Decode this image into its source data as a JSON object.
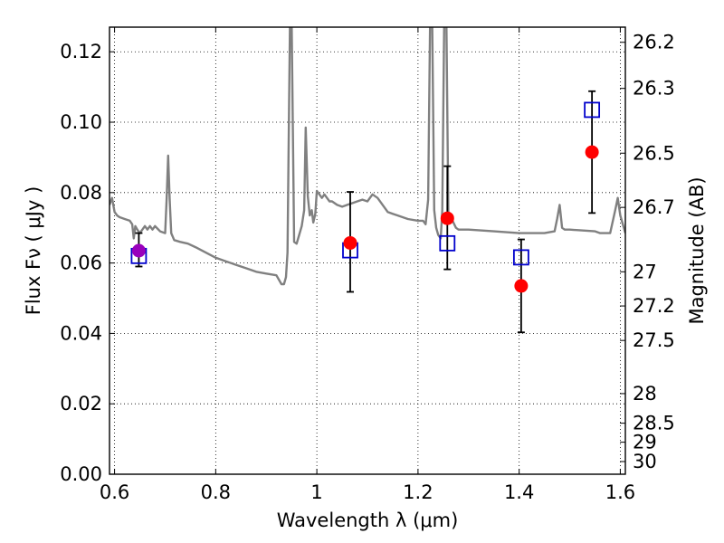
{
  "chart_data": {
    "type": "scatter",
    "xlabel": "Wavelength  λ (μm)",
    "ylabel": "Flux  Fν  ( μJy )",
    "y2label": "Magnitude (AB)",
    "xlim": [
      0.59,
      1.61
    ],
    "ylim": [
      0.0,
      0.127
    ],
    "grid": true,
    "x_ticks": [
      {
        "value": 0.6,
        "label": "0.6"
      },
      {
        "value": 0.8,
        "label": "0.8"
      },
      {
        "value": 1.0,
        "label": "1"
      },
      {
        "value": 1.2,
        "label": "1.2"
      },
      {
        "value": 1.4,
        "label": "1.4"
      },
      {
        "value": 1.6,
        "label": "1.6"
      }
    ],
    "y_ticks": [
      {
        "value": 0.0,
        "label": "0.00"
      },
      {
        "value": 0.02,
        "label": "0.02"
      },
      {
        "value": 0.04,
        "label": "0.04"
      },
      {
        "value": 0.06,
        "label": "0.06"
      },
      {
        "value": 0.08,
        "label": "0.08"
      },
      {
        "value": 0.1,
        "label": "0.10"
      },
      {
        "value": 0.12,
        "label": "0.12"
      }
    ],
    "y2_ticks": [
      {
        "flux": 0.1227,
        "label": "26.2"
      },
      {
        "flux": 0.1096,
        "label": "26.3"
      },
      {
        "flux": 0.0912,
        "label": "26.5"
      },
      {
        "flux": 0.0758,
        "label": "26.7"
      },
      {
        "flux": 0.0575,
        "label": "27"
      },
      {
        "flux": 0.0478,
        "label": "27.2"
      },
      {
        "flux": 0.038,
        "label": "27.5"
      },
      {
        "flux": 0.0229,
        "label": "28"
      },
      {
        "flux": 0.0145,
        "label": "28.5"
      },
      {
        "flux": 0.0091,
        "label": "29"
      },
      {
        "flux": 0.0036,
        "label": "30"
      }
    ],
    "series": [
      {
        "kind": "line",
        "color": "#808080",
        "x": [
          0.59,
          0.595,
          0.6,
          0.605,
          0.61,
          0.62,
          0.63,
          0.635,
          0.638,
          0.641,
          0.645,
          0.65,
          0.66,
          0.665,
          0.67,
          0.675,
          0.68,
          0.69,
          0.7,
          0.703,
          0.706,
          0.709,
          0.712,
          0.718,
          0.73,
          0.745,
          0.76,
          0.78,
          0.8,
          0.82,
          0.84,
          0.86,
          0.88,
          0.9,
          0.92,
          0.93,
          0.935,
          0.939,
          0.942,
          0.944,
          0.947,
          0.95,
          0.955,
          0.96,
          0.965,
          0.97,
          0.975,
          0.978,
          0.982,
          0.986,
          0.99,
          0.993,
          0.997,
          1.0,
          1.005,
          1.01,
          1.015,
          1.02,
          1.025,
          1.03,
          1.04,
          1.05,
          1.06,
          1.07,
          1.08,
          1.09,
          1.1,
          1.11,
          1.12,
          1.13,
          1.135,
          1.14,
          1.15,
          1.16,
          1.18,
          1.2,
          1.21,
          1.215,
          1.22,
          1.224,
          1.228,
          1.232,
          1.236,
          1.24,
          1.245,
          1.248,
          1.252,
          1.256,
          1.26,
          1.265,
          1.27,
          1.275,
          1.28,
          1.3,
          1.35,
          1.4,
          1.45,
          1.47,
          1.475,
          1.48,
          1.485,
          1.49,
          1.5,
          1.55,
          1.56,
          1.58,
          1.59,
          1.595,
          1.6,
          1.61
        ],
        "y": [
          0.0765,
          0.0785,
          0.0745,
          0.0735,
          0.073,
          0.0725,
          0.072,
          0.071,
          0.067,
          0.0705,
          0.0695,
          0.0685,
          0.0705,
          0.0695,
          0.0705,
          0.0695,
          0.0705,
          0.069,
          0.0685,
          0.078,
          0.0905,
          0.078,
          0.0685,
          0.0665,
          0.066,
          0.0655,
          0.0645,
          0.063,
          0.0615,
          0.0605,
          0.0595,
          0.0585,
          0.0575,
          0.057,
          0.0565,
          0.054,
          0.054,
          0.056,
          0.063,
          0.09,
          0.13,
          0.13,
          0.066,
          0.0655,
          0.068,
          0.0705,
          0.075,
          0.0985,
          0.079,
          0.0735,
          0.075,
          0.0715,
          0.074,
          0.0805,
          0.0795,
          0.0785,
          0.0795,
          0.0785,
          0.0775,
          0.0775,
          0.0765,
          0.076,
          0.0765,
          0.077,
          0.0775,
          0.078,
          0.0775,
          0.0795,
          0.0785,
          0.0765,
          0.0755,
          0.0745,
          0.074,
          0.0735,
          0.0725,
          0.072,
          0.072,
          0.071,
          0.078,
          0.13,
          0.13,
          0.075,
          0.07,
          0.068,
          0.067,
          0.075,
          0.13,
          0.13,
          0.0745,
          0.073,
          0.0715,
          0.07,
          0.0695,
          0.0695,
          0.069,
          0.0685,
          0.0685,
          0.069,
          0.0725,
          0.0765,
          0.07,
          0.0695,
          0.0695,
          0.069,
          0.0685,
          0.0685,
          0.075,
          0.0785,
          0.0735,
          0.0685
        ]
      },
      {
        "kind": "errorbar",
        "color": "#000000",
        "points": [
          {
            "x": 0.648,
            "y": 0.0635,
            "lo": 0.059,
            "hi": 0.0685
          },
          {
            "x": 1.066,
            "y": 0.0657,
            "lo": 0.0518,
            "hi": 0.0802
          },
          {
            "x": 1.258,
            "y": 0.0727,
            "lo": 0.0582,
            "hi": 0.0875
          },
          {
            "x": 1.404,
            "y": 0.0535,
            "lo": 0.0403,
            "hi": 0.0667
          },
          {
            "x": 1.544,
            "y": 0.0915,
            "lo": 0.0742,
            "hi": 0.1088
          }
        ]
      },
      {
        "kind": "scatter",
        "marker": "open-square",
        "color": "#0000cc",
        "x": [
          0.648,
          1.066,
          1.258,
          1.404,
          1.544
        ],
        "y": [
          0.062,
          0.0636,
          0.0656,
          0.0616,
          0.1035
        ]
      },
      {
        "kind": "scatter",
        "marker": "circle",
        "colors": [
          "#9900bb",
          "#ff0000",
          "#ff0000",
          "#ff0000",
          "#ff0000"
        ],
        "x": [
          0.648,
          1.066,
          1.258,
          1.404,
          1.544
        ],
        "y": [
          0.0635,
          0.0657,
          0.0727,
          0.0535,
          0.0915
        ]
      }
    ]
  }
}
